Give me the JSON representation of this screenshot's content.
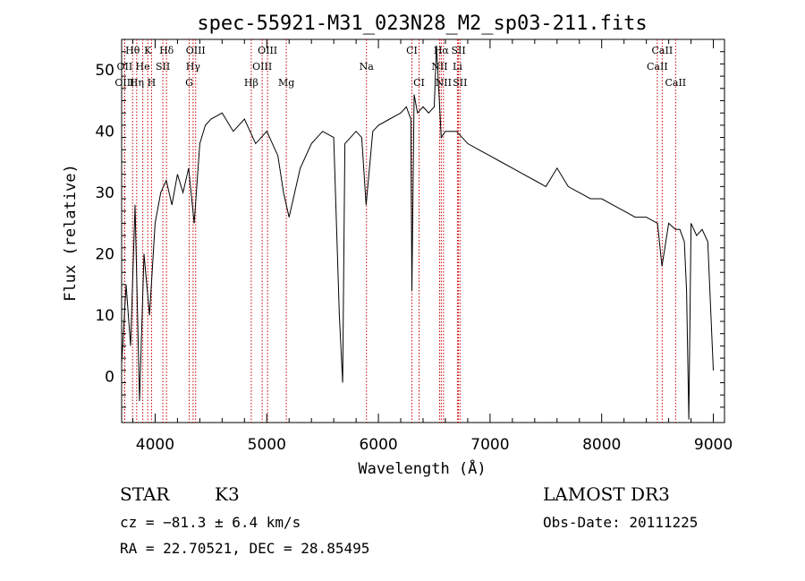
{
  "chart_data": {
    "type": "line",
    "title": "spec-55921-M31_023N28_M2_sp03-211.fits",
    "xlabel": "Wavelength (Å)",
    "ylabel": "Flux (relative)",
    "xlim": [
      3700,
      9100
    ],
    "ylim": [
      -7.5,
      55
    ],
    "grid": false,
    "legend": "none",
    "x_ticks": [
      4000,
      5000,
      6000,
      7000,
      8000,
      9000
    ],
    "x_tick_labels": [
      "4000",
      "5000",
      "6000",
      "7000",
      "8000",
      "9000"
    ],
    "y_ticks": [
      0,
      10,
      20,
      30,
      40,
      50
    ],
    "y_tick_labels": [
      "0",
      "10",
      "20",
      "30",
      "40",
      "50"
    ],
    "line_color": "#000000",
    "marker_color": "#cc0000",
    "series": [
      {
        "x": [
          3700,
          3740,
          3780,
          3820,
          3860,
          3900,
          3950,
          4000,
          4050,
          4100,
          4150,
          4200,
          4250,
          4300,
          4350,
          4400,
          4450,
          4500,
          4600,
          4700,
          4800,
          4900,
          5000,
          5100,
          5150,
          5200,
          5300,
          5400,
          5500,
          5600,
          5650,
          5680,
          5700,
          5800,
          5850,
          5890,
          5950,
          6000,
          6100,
          6200,
          6250,
          6290,
          6300,
          6320,
          6350,
          6400,
          6450,
          6500,
          6520,
          6563,
          6600,
          6700,
          6800,
          6900,
          7000,
          7100,
          7200,
          7300,
          7400,
          7500,
          7600,
          7700,
          7800,
          7900,
          8000,
          8100,
          8200,
          8300,
          8400,
          8500,
          8540,
          8600,
          8660,
          8700,
          8740,
          8760,
          8780,
          8800,
          8850,
          8900,
          8950,
          9000
        ],
        "y": [
          2,
          15,
          5,
          28,
          -4,
          20,
          10,
          25,
          30,
          32,
          28,
          33,
          30,
          34,
          25,
          38,
          41,
          42,
          43,
          40,
          42,
          38,
          40,
          36,
          30,
          26,
          34,
          38,
          40,
          39,
          10,
          -1,
          38,
          40,
          39,
          28,
          40,
          41,
          42,
          43,
          44,
          42,
          14,
          46,
          43,
          44,
          43,
          44,
          54,
          39,
          40,
          40,
          38,
          37,
          36,
          35,
          34,
          33,
          32,
          31,
          34,
          31,
          30,
          29,
          29,
          28,
          27,
          26,
          26,
          25,
          18,
          25,
          24,
          24,
          22,
          14,
          -7,
          25,
          23,
          24,
          22,
          1
        ]
      }
    ],
    "lines": [
      {
        "label": "Hθ",
        "wavelength": 3798,
        "row": 0
      },
      {
        "label": "K",
        "wavelength": 3934,
        "row": 0
      },
      {
        "label": "Hδ",
        "wavelength": 4102,
        "row": 0
      },
      {
        "label": "OIII",
        "wavelength": 4363,
        "row": 0
      },
      {
        "label": "OIII",
        "wavelength": 5007,
        "row": 0
      },
      {
        "label": "CI",
        "wavelength": 6300,
        "row": 0
      },
      {
        "label": "Hα",
        "wavelength": 6563,
        "row": 0
      },
      {
        "label": "SII",
        "wavelength": 6717,
        "row": 0
      },
      {
        "label": "CaII",
        "wavelength": 8542,
        "row": 0
      },
      {
        "label": "OII",
        "wavelength": 3727,
        "row": 1
      },
      {
        "label": "He",
        "wavelength": 3889,
        "row": 1
      },
      {
        "label": "SII",
        "wavelength": 4069,
        "row": 1
      },
      {
        "label": "Hγ",
        "wavelength": 4340,
        "row": 1
      },
      {
        "label": "OIII",
        "wavelength": 4959,
        "row": 1
      },
      {
        "label": "Na",
        "wavelength": 5893,
        "row": 1
      },
      {
        "label": "NII",
        "wavelength": 6548,
        "row": 1
      },
      {
        "label": "Li",
        "wavelength": 6708,
        "row": 1
      },
      {
        "label": "CaII",
        "wavelength": 8498,
        "row": 1
      },
      {
        "label": "OIII",
        "wavelength": 3727,
        "row": 2
      },
      {
        "label": "Hη",
        "wavelength": 3835,
        "row": 2
      },
      {
        "label": "H",
        "wavelength": 3968,
        "row": 2
      },
      {
        "label": "G",
        "wavelength": 4305,
        "row": 2
      },
      {
        "label": "Hβ",
        "wavelength": 4861,
        "row": 2
      },
      {
        "label": "Mg",
        "wavelength": 5175,
        "row": 2
      },
      {
        "label": "CI",
        "wavelength": 6364,
        "row": 2
      },
      {
        "label": "NII",
        "wavelength": 6583,
        "row": 2
      },
      {
        "label": "SII",
        "wavelength": 6731,
        "row": 2
      },
      {
        "label": "CaII",
        "wavelength": 8662,
        "row": 2
      }
    ]
  },
  "info": {
    "class_label": "STAR",
    "subclass_label": "K3",
    "survey": "LAMOST DR3",
    "cz": "cz = −81.3 ± 6.4 km/s",
    "obs_date": "Obs-Date: 20111225",
    "coords": "RA =  22.70521, DEC =  28.85495"
  }
}
